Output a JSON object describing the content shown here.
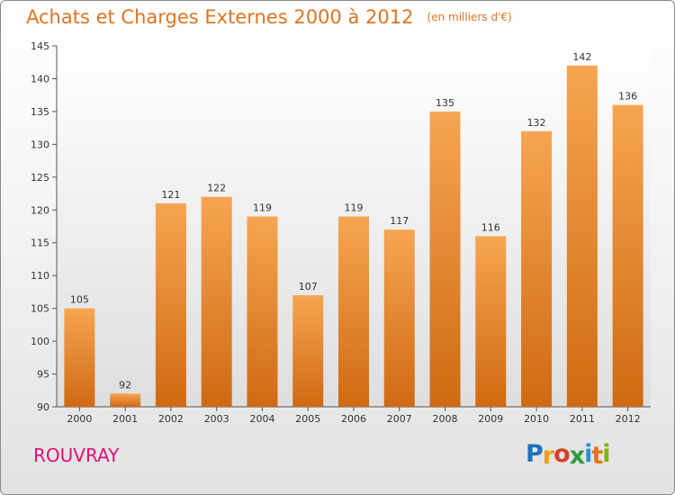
{
  "title": "Achats et Charges Externes 2000 à 2012",
  "unit": "(en milliers d'€)",
  "place": "ROUVRAY",
  "brand": {
    "letters": [
      "P",
      "r",
      "o",
      "x",
      "i",
      "t",
      "i"
    ],
    "colors": [
      "#1e73b8",
      "#e6a21c",
      "#d8402a",
      "#2a9d3a",
      "#2a8fd6",
      "#e07420",
      "#7ab800"
    ]
  },
  "colors": {
    "accent": "#e07420",
    "bar_top": "#f6a552",
    "bar_bottom": "#cf6a12",
    "place": "#e0107a"
  },
  "chart_data": {
    "type": "bar",
    "title": "Achats et Charges Externes 2000 à 2012",
    "subtitle": "(en milliers d'€)",
    "xlabel": "",
    "ylabel": "",
    "categories": [
      "2000",
      "2001",
      "2002",
      "2003",
      "2004",
      "2005",
      "2006",
      "2007",
      "2008",
      "2009",
      "2010",
      "2011",
      "2012"
    ],
    "values": [
      105,
      92,
      121,
      122,
      119,
      107,
      119,
      117,
      135,
      116,
      132,
      142,
      136
    ],
    "ylim": [
      90,
      145
    ],
    "yticks": [
      90,
      95,
      100,
      105,
      110,
      115,
      120,
      125,
      130,
      135,
      140,
      145
    ],
    "grid": false,
    "data_labels": true
  }
}
